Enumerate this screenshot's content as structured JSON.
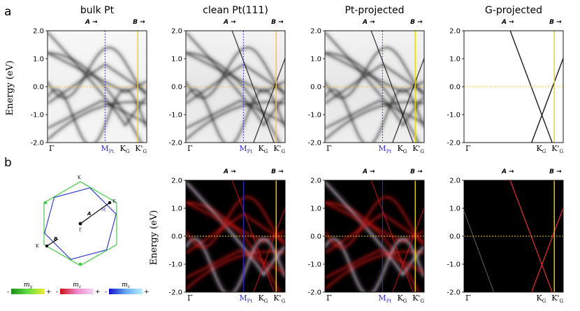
{
  "figure": {
    "panel_labels": [
      "a",
      "b"
    ],
    "ylabel": "Energy (eV)",
    "ylim": [
      -2.0,
      2.0
    ],
    "yticks": [
      2.0,
      1.0,
      0.0,
      -1.0,
      -2.0
    ],
    "ytick_labels": [
      "2.0",
      "1.0",
      "0.0",
      "-1.0",
      "-2.0"
    ],
    "arrow_labels": {
      "A": "A",
      "B": "B"
    },
    "kpoints": {
      "gamma": "Γ",
      "m": "M",
      "m_sub": "Pt",
      "k": "K",
      "k_sub": "G",
      "kp": "K'",
      "kp_sub": "G"
    }
  },
  "chart_data": [
    {
      "type": "heatmap",
      "title": "bulk Pt",
      "row": "a",
      "colormap": "gray",
      "kpath": [
        "Γ",
        "M_Pt",
        "K_G",
        "K'_G"
      ],
      "ylim": [
        -2.0,
        2.0
      ],
      "show_m": true
    },
    {
      "type": "heatmap",
      "title": "clean Pt(111)",
      "row": "a",
      "colormap": "gray",
      "kpath": [
        "Γ",
        "M_Pt",
        "K_G",
        "K'_G"
      ],
      "ylim": [
        -2.0,
        2.0
      ],
      "show_m": true
    },
    {
      "type": "heatmap",
      "title": "Pt-projected",
      "row": "a",
      "colormap": "gray",
      "kpath": [
        "Γ",
        "M_Pt",
        "K_G",
        "K'_G"
      ],
      "ylim": [
        -2.0,
        2.0
      ],
      "show_m": true
    },
    {
      "type": "heatmap",
      "title": "G-projected",
      "row": "a",
      "colormap": "gray",
      "kpath": [
        "Γ",
        "K_G",
        "K'_G"
      ],
      "ylim": [
        -2.0,
        2.0
      ],
      "show_m": false
    },
    {
      "type": "heatmap",
      "title": "",
      "row": "b",
      "colormap": "spin",
      "kpath": [
        "Γ",
        "M_Pt",
        "K_G",
        "K'_G"
      ],
      "ylim": [
        -2.0,
        2.0
      ],
      "show_m": true
    },
    {
      "type": "heatmap",
      "title": "",
      "row": "b",
      "colormap": "spin",
      "kpath": [
        "Γ",
        "M_Pt",
        "K_G",
        "K'_G"
      ],
      "ylim": [
        -2.0,
        2.0
      ],
      "show_m": true
    },
    {
      "type": "heatmap",
      "title": "",
      "row": "b",
      "colormap": "spin",
      "kpath": [
        "Γ",
        "K_G",
        "K'_G"
      ],
      "ylim": [
        -2.0,
        2.0
      ],
      "show_m": false
    }
  ],
  "bz": {
    "labels": {
      "gamma": "Γ",
      "kg_top": "K",
      "kg_right": "K",
      "kg_left": "K",
      "mg": "M",
      "a": "A",
      "b": "B"
    },
    "colors": {
      "pt": "#3344cc",
      "graphene": "#44cc44",
      "path": "#000000"
    }
  },
  "colorbars": [
    {
      "label": "m_y",
      "minus": "-",
      "plus": "+",
      "colors": [
        "#1a8f1a",
        "#66dd44",
        "#eeee33"
      ]
    },
    {
      "label": "m_z",
      "minus": "-",
      "plus": "+",
      "colors": [
        "#cc1111",
        "#ee88cc",
        "#f4d4f4"
      ]
    },
    {
      "label": "m_z",
      "minus": "-",
      "plus": "+",
      "colors": [
        "#1111cc",
        "#66aaee",
        "#bbeeff"
      ]
    }
  ],
  "colors": {
    "fermi": "#e8c828",
    "m_line": "#3333cc",
    "k_line": "#f0d010"
  }
}
